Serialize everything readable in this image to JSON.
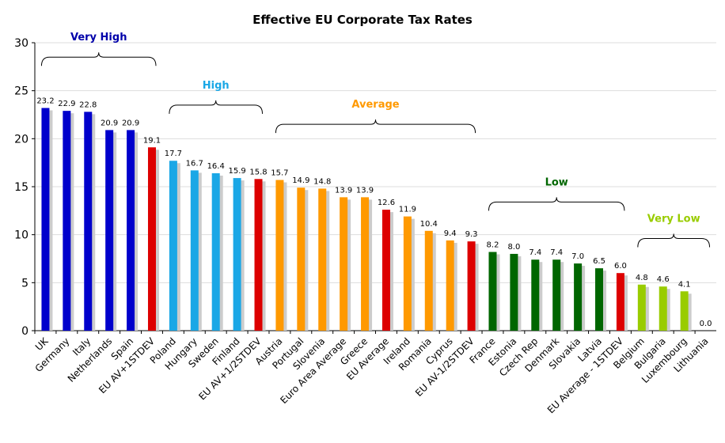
{
  "chart_data": {
    "type": "bar",
    "title": "Effective EU Corporate Tax Rates",
    "xlabel": "",
    "ylabel": "",
    "ylim": [
      0,
      30
    ],
    "yticks": [
      0,
      5,
      10,
      15,
      20,
      25,
      30
    ],
    "grid": true,
    "categories": [
      "UK",
      "Germany",
      "Italy",
      "Netherlands",
      "Spain",
      "EU AV+1STDEV",
      "Poland",
      "Hungary",
      "Sweden",
      "Finland",
      "EU AV+1/2STDEV",
      "Austria",
      "Portugal",
      "Slovenia",
      "Euro Area Average",
      "Greece",
      "EU Average",
      "Ireland",
      "Romania",
      "Cyprus",
      "EU AV-1/2STDEV",
      "France",
      "Estonia",
      "Czech Rep",
      "Denmark",
      "Slovakia",
      "Latvia",
      "EU Average - 1STDEV",
      "Belgium",
      "Bulgaria",
      "Luxembourg",
      "Lithuania"
    ],
    "values": [
      23.2,
      22.9,
      22.8,
      20.9,
      20.9,
      19.1,
      17.7,
      16.7,
      16.4,
      15.9,
      15.8,
      15.7,
      14.9,
      14.8,
      13.9,
      13.9,
      12.6,
      11.9,
      10.4,
      9.4,
      9.3,
      8.2,
      8.0,
      7.4,
      7.4,
      7.0,
      6.5,
      6.0,
      4.8,
      4.6,
      4.1,
      0.0
    ],
    "value_labels": [
      "23.2",
      "22.9",
      "22.8",
      "20.9",
      "20.9",
      "19.1",
      "17.7",
      "16.7",
      "16.4",
      "15.9",
      "15.8",
      "15.7",
      "14.9",
      "14.8",
      "13.9",
      "13.9",
      "12.6",
      "11.9",
      "10.4",
      "9.4",
      "9.3",
      "8.2",
      "8.0",
      "7.4",
      "7.4",
      "7.0",
      "6.5",
      "6.0",
      "4.8",
      "4.6",
      "4.1",
      "0.0"
    ],
    "bar_colors": [
      "#0000cc",
      "#0000cc",
      "#0000cc",
      "#0000cc",
      "#0000cc",
      "#dd0000",
      "#1aa7e6",
      "#1aa7e6",
      "#1aa7e6",
      "#1aa7e6",
      "#dd0000",
      "#ff9900",
      "#ff9900",
      "#ff9900",
      "#ff9900",
      "#ff9900",
      "#dd0000",
      "#ff9900",
      "#ff9900",
      "#ff9900",
      "#dd0000",
      "#006600",
      "#006600",
      "#006600",
      "#006600",
      "#006600",
      "#006600",
      "#dd0000",
      "#99cc00",
      "#99cc00",
      "#99cc00",
      "#99cc00"
    ],
    "groups": [
      {
        "label": "Very High",
        "color": "#0000aa",
        "from": 0,
        "to": 5,
        "level": 28.5
      },
      {
        "label": "High",
        "color": "#1aa7e6",
        "from": 6,
        "to": 10,
        "level": 23.5
      },
      {
        "label": "Average",
        "color": "#ff9900",
        "from": 11,
        "to": 20,
        "level": 21.5
      },
      {
        "label": "Low",
        "color": "#006600",
        "from": 21,
        "to": 27,
        "level": 13.4
      },
      {
        "label": "Very Low",
        "color": "#99cc00",
        "from": 28,
        "to": 31,
        "level": 9.6
      }
    ],
    "colors": {
      "gridline": "#dddddd",
      "axis": "#000000",
      "shadow": "#cccccc",
      "label_text": "#000000"
    }
  }
}
